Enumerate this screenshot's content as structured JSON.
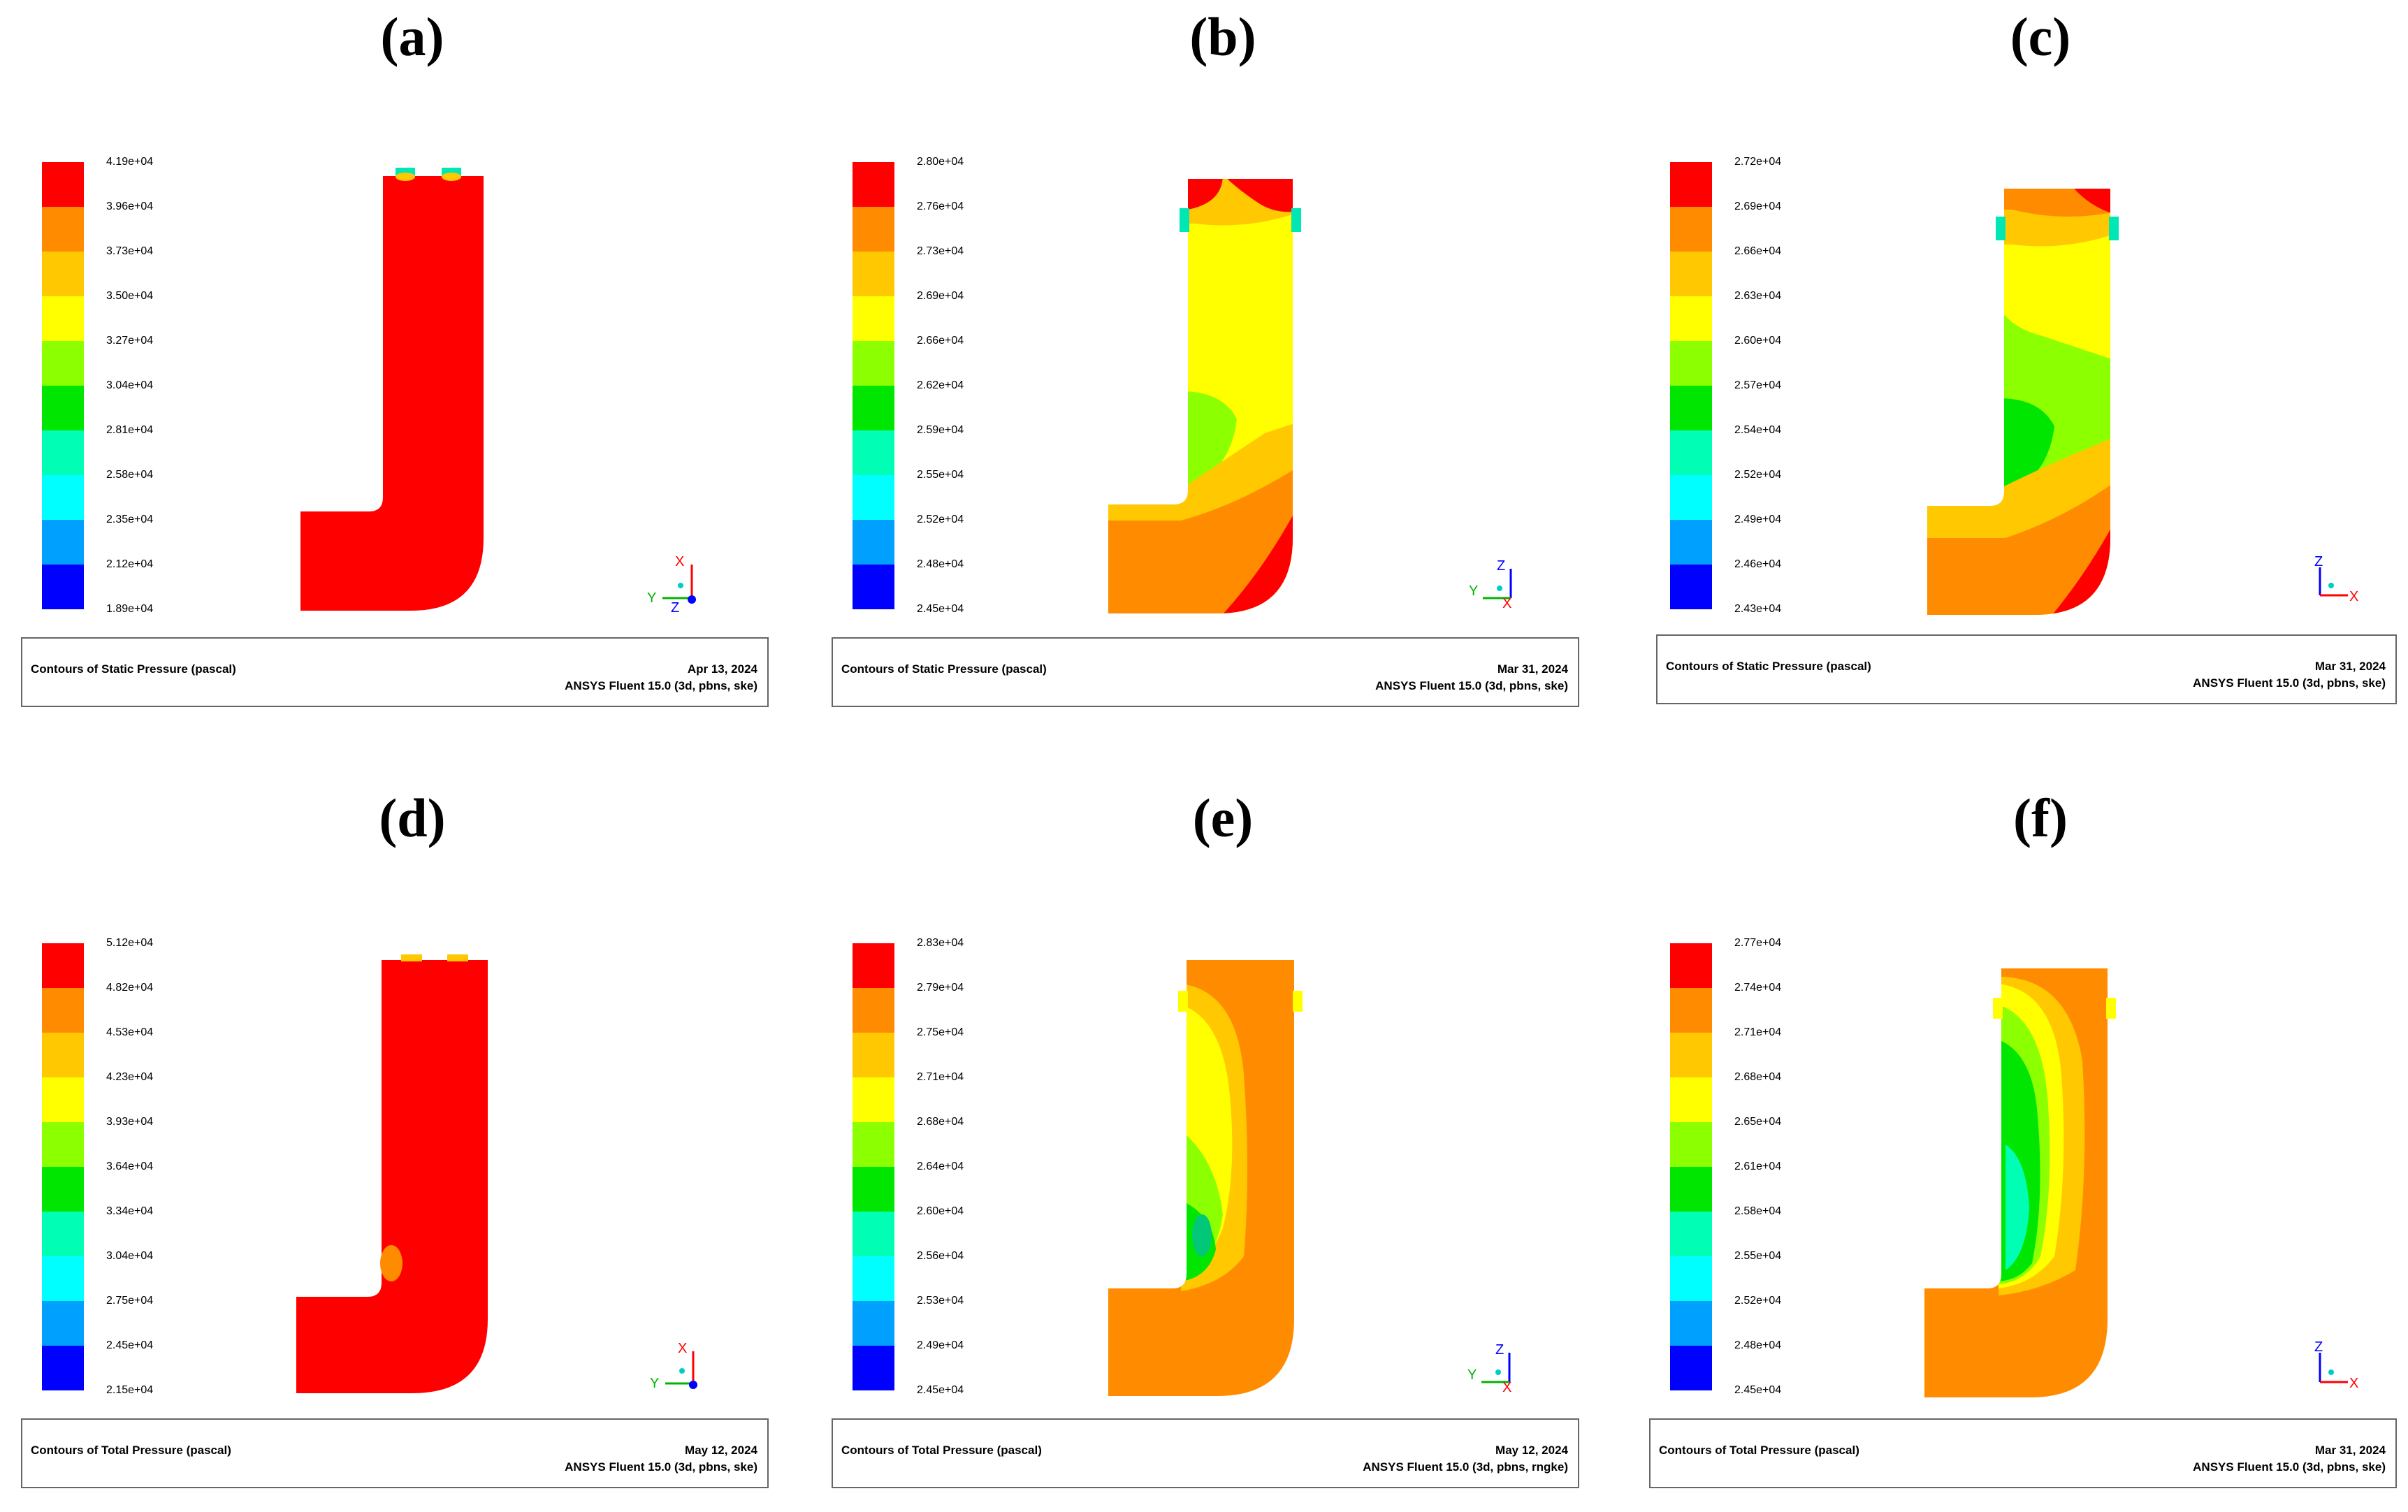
{
  "panels": [
    {
      "letter": "(a)",
      "caption": "Contours of Static Pressure (pascal)",
      "date": "Apr 13, 2024",
      "solver": "ANSYS Fluent 15.0 (3d, pbns, ske)",
      "legend": [
        "4.19e+04",
        "3.96e+04",
        "3.73e+04",
        "3.50e+04",
        "3.27e+04",
        "3.04e+04",
        "2.81e+04",
        "2.58e+04",
        "2.35e+04",
        "2.12e+04",
        "1.89e+04"
      ],
      "axes": {
        "a1": "X",
        "a2": "Y",
        "a3": "Z"
      }
    },
    {
      "letter": "(b)",
      "caption": "Contours of Static Pressure (pascal)",
      "date": "Mar 31, 2024",
      "solver": "ANSYS Fluent 15.0 (3d, pbns, ske)",
      "legend": [
        "2.80e+04",
        "2.76e+04",
        "2.73e+04",
        "2.69e+04",
        "2.66e+04",
        "2.62e+04",
        "2.59e+04",
        "2.55e+04",
        "2.52e+04",
        "2.48e+04",
        "2.45e+04"
      ],
      "axes": {
        "a1": "Z",
        "a2": "Y",
        "a3": "X"
      }
    },
    {
      "letter": "(c)",
      "caption": "Contours of Static Pressure (pascal)",
      "date": "Mar 31, 2024",
      "solver": "ANSYS Fluent 15.0 (3d, pbns, ske)",
      "legend": [
        "2.72e+04",
        "2.69e+04",
        "2.66e+04",
        "2.63e+04",
        "2.60e+04",
        "2.57e+04",
        "2.54e+04",
        "2.52e+04",
        "2.49e+04",
        "2.46e+04",
        "2.43e+04"
      ],
      "axes": {
        "a1": "Z",
        "a2": "",
        "a3": "X"
      }
    },
    {
      "letter": "(d)",
      "caption": "Contours of Total Pressure (pascal)",
      "date": "May 12, 2024",
      "solver": "ANSYS Fluent 15.0 (3d, pbns, ske)",
      "legend": [
        "5.12e+04",
        "4.82e+04",
        "4.53e+04",
        "4.23e+04",
        "3.93e+04",
        "3.64e+04",
        "3.34e+04",
        "3.04e+04",
        "2.75e+04",
        "2.45e+04",
        "2.15e+04"
      ],
      "axes": {
        "a1": "X",
        "a2": "Y",
        "a3": ""
      }
    },
    {
      "letter": "(e)",
      "caption": "Contours of Total Pressure (pascal)",
      "date": "May 12, 2024",
      "solver": "ANSYS Fluent 15.0 (3d, pbns, rngke)",
      "legend": [
        "2.83e+04",
        "2.79e+04",
        "2.75e+04",
        "2.71e+04",
        "2.68e+04",
        "2.64e+04",
        "2.60e+04",
        "2.56e+04",
        "2.53e+04",
        "2.49e+04",
        "2.45e+04"
      ],
      "axes": {
        "a1": "Z",
        "a2": "Y",
        "a3": "X"
      }
    },
    {
      "letter": "(f)",
      "caption": "Contours of Total Pressure (pascal)",
      "date": "Mar 31, 2024",
      "solver": "ANSYS Fluent 15.0 (3d, pbns, ske)",
      "legend": [
        "2.77e+04",
        "2.74e+04",
        "2.71e+04",
        "2.68e+04",
        "2.65e+04",
        "2.61e+04",
        "2.58e+04",
        "2.55e+04",
        "2.52e+04",
        "2.48e+04",
        "2.45e+04"
      ],
      "axes": {
        "a1": "Z",
        "a2": "",
        "a3": "X"
      }
    }
  ],
  "colormap": [
    "#ff0000",
    "#ff8c00",
    "#ffc800",
    "#ffff00",
    "#8cff00",
    "#00e600",
    "#00ffb4",
    "#00ffff",
    "#00a0ff",
    "#0050ff",
    "#0000ff"
  ]
}
